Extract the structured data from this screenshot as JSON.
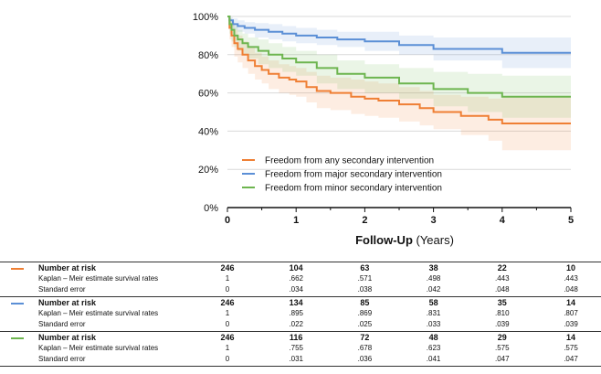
{
  "colors": {
    "any": "#ef7f34",
    "major": "#5b8fd6",
    "minor": "#6db54f",
    "grid": "#d9d9d9",
    "axis": "#111111"
  },
  "chart_data": {
    "type": "line",
    "subtype": "kaplan-meier step curves with confidence bands",
    "xlabel_bold": "Follow-Up",
    "xlabel_rest": " (Years)",
    "ylabel": "",
    "xlim": [
      0,
      5
    ],
    "ylim": [
      0,
      100
    ],
    "x_ticks": [
      "0",
      "1",
      "2",
      "3",
      "4",
      "5"
    ],
    "y_ticks": [
      "0%",
      "20%",
      "40%",
      "60%",
      "80%",
      "100%"
    ],
    "grid": "horizontal",
    "legend_position": "bottom-left",
    "series": [
      {
        "name": "Freedom from any secondary intervention",
        "color_key": "any",
        "x": [
          0,
          0.03,
          0.06,
          0.1,
          0.15,
          0.22,
          0.3,
          0.4,
          0.5,
          0.6,
          0.75,
          0.9,
          1.0,
          1.15,
          1.3,
          1.5,
          1.8,
          2.0,
          2.2,
          2.5,
          2.8,
          3.0,
          3.4,
          3.8,
          4.0,
          5.0
        ],
        "values": [
          100,
          94,
          90,
          86,
          83,
          80,
          77,
          74,
          72,
          70,
          68,
          67,
          66,
          63,
          61,
          60,
          58,
          57,
          56,
          54,
          52,
          50,
          48,
          46,
          44,
          44
        ],
        "ci_lower": [
          100,
          88,
          84,
          79,
          76,
          73,
          70,
          67,
          65,
          62,
          60,
          59,
          58,
          55,
          52,
          51,
          49,
          48,
          47,
          45,
          43,
          41,
          38,
          35,
          30,
          30
        ],
        "ci_upper": [
          100,
          99,
          97,
          93,
          90,
          87,
          84,
          81,
          79,
          77,
          75,
          74,
          73,
          71,
          69,
          68,
          67,
          66,
          65,
          63,
          61,
          59,
          58,
          57,
          58,
          58
        ]
      },
      {
        "name": "Freedom from major secondary intervention",
        "color_key": "major",
        "x": [
          0,
          0.03,
          0.08,
          0.15,
          0.25,
          0.4,
          0.6,
          0.8,
          1.0,
          1.3,
          1.6,
          2.0,
          2.5,
          3.0,
          3.5,
          4.0,
          5.0
        ],
        "values": [
          100,
          98,
          96,
          95,
          94,
          93,
          92,
          91,
          90,
          89,
          88,
          87,
          85,
          83,
          83,
          81,
          81
        ],
        "ci_lower": [
          100,
          96,
          93,
          92,
          91,
          89,
          88,
          87,
          86,
          85,
          84,
          82,
          80,
          77,
          77,
          73,
          73
        ],
        "ci_upper": [
          100,
          99.5,
          99,
          98,
          97,
          96.5,
          96,
          95,
          94,
          93,
          92,
          92,
          90,
          89,
          89,
          89,
          89
        ]
      },
      {
        "name": "Freedom from minor secondary intervention",
        "color_key": "minor",
        "x": [
          0,
          0.03,
          0.06,
          0.1,
          0.15,
          0.22,
          0.3,
          0.45,
          0.6,
          0.8,
          1.0,
          1.3,
          1.6,
          2.0,
          2.5,
          3.0,
          3.5,
          4.0,
          5.0
        ],
        "values": [
          100,
          96,
          93,
          90,
          88,
          86,
          84,
          82,
          80,
          78,
          76,
          73,
          70,
          68,
          65,
          62,
          60,
          58,
          58
        ],
        "ci_lower": [
          100,
          91,
          87,
          84,
          82,
          80,
          78,
          75,
          73,
          71,
          69,
          65,
          62,
          60,
          57,
          53,
          50,
          47,
          47
        ],
        "ci_upper": [
          100,
          99,
          98,
          95,
          93,
          91,
          89,
          88,
          86,
          84,
          82,
          80,
          77,
          75,
          73,
          71,
          70,
          69,
          69
        ]
      }
    ]
  },
  "risk_table": {
    "columns_x": [
      0,
      1,
      2,
      3,
      4,
      5
    ],
    "groups": [
      {
        "color_key": "any",
        "rows": [
          {
            "label": "Number at risk",
            "values": [
              "246",
              "104",
              "63",
              "38",
              "22",
              "10"
            ]
          },
          {
            "label": "Kaplan – Meir estimate survival rates",
            "values": [
              "1",
              ".662",
              ".571",
              ".498",
              ".443",
              ".443"
            ]
          },
          {
            "label": "Standard error",
            "values": [
              "0",
              ".034",
              ".038",
              ".042",
              ".048",
              ".048"
            ]
          }
        ]
      },
      {
        "color_key": "major",
        "rows": [
          {
            "label": "Number at risk",
            "values": [
              "246",
              "134",
              "85",
              "58",
              "35",
              "14"
            ]
          },
          {
            "label": "Kaplan – Meir estimate survival rates",
            "values": [
              "1",
              ".895",
              ".869",
              ".831",
              ".810",
              ".807"
            ]
          },
          {
            "label": "Standard error",
            "values": [
              "0",
              ".022",
              ".025",
              ".033",
              ".039",
              ".039"
            ]
          }
        ]
      },
      {
        "color_key": "minor",
        "rows": [
          {
            "label": "Number at risk",
            "values": [
              "246",
              "116",
              "72",
              "48",
              "29",
              "14"
            ]
          },
          {
            "label": "Kaplan – Meir estimate survival rates",
            "values": [
              "1",
              ".755",
              ".678",
              ".623",
              ".575",
              ".575"
            ]
          },
          {
            "label": "Standard error",
            "values": [
              "0",
              ".031",
              ".036",
              ".041",
              ".047",
              ".047"
            ]
          }
        ]
      }
    ]
  }
}
